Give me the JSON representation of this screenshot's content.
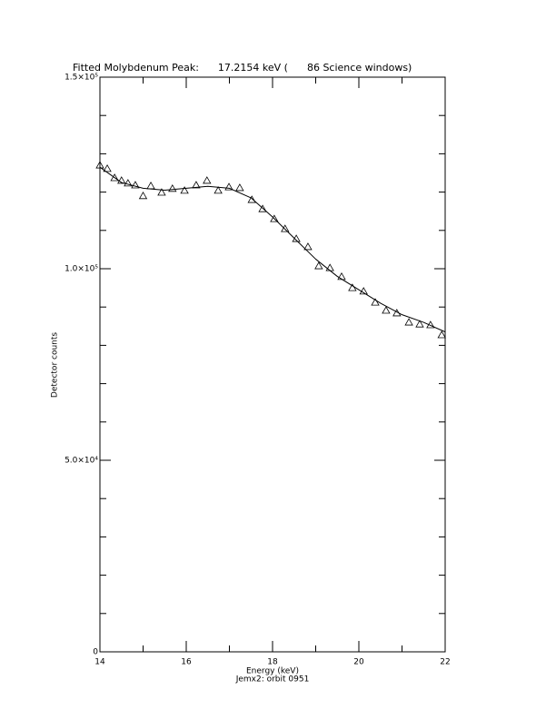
{
  "chart_data": {
    "type": "scatter",
    "title": "Fitted Molybdenum Peak:      17.2154 keV (      86 Science windows)",
    "x_label": "Energy (keV)",
    "y_label": "Detector counts",
    "footnote": "Jemx2: orbit 0951",
    "xlim": [
      14,
      22
    ],
    "xticks": [
      14,
      16,
      18,
      20,
      22
    ],
    "xminor_step": 1,
    "ylim": [
      0,
      150000
    ],
    "yticks": [
      0,
      {
        "value": 50000,
        "label": "5.0×10⁴"
      },
      {
        "value": 100000,
        "label": "1.0×10⁵"
      },
      {
        "value": 150000,
        "label": "1.5×10⁵"
      }
    ],
    "yminor_step": 10000,
    "color": "#000000",
    "series": [
      {
        "type": "scatter",
        "x": [
          14.0,
          14.17,
          14.34,
          14.5,
          14.65,
          14.82,
          15.0,
          15.18,
          15.43,
          15.68,
          15.96,
          16.23,
          16.48,
          16.74,
          16.99,
          17.24,
          17.52,
          17.77,
          18.04,
          18.29,
          18.55,
          18.82,
          19.07,
          19.33,
          19.6,
          19.85,
          20.11,
          20.38,
          20.63,
          20.88,
          21.16,
          21.41,
          21.66,
          21.92
        ],
        "values": [
          127000,
          126100,
          123700,
          123000,
          122300,
          121800,
          119000,
          121600,
          119900,
          120900,
          120400,
          121800,
          123000,
          120400,
          121300,
          121100,
          118000,
          115600,
          113000,
          110400,
          107800,
          105700,
          100700,
          100200,
          97900,
          95000,
          94100,
          91200,
          89100,
          88400,
          86000,
          85500,
          85300,
          82700
        ]
      },
      {
        "type": "line",
        "x": [
          14,
          14.5,
          15,
          15.5,
          16,
          16.5,
          17,
          17.5,
          18,
          18.5,
          19,
          19.5,
          20,
          20.5,
          21,
          21.5,
          22
        ],
        "values": [
          126500,
          122500,
          121000,
          120500,
          121000,
          121500,
          121000,
          118500,
          113500,
          108000,
          102500,
          98000,
          94500,
          91000,
          88000,
          86000,
          83500
        ]
      }
    ]
  }
}
